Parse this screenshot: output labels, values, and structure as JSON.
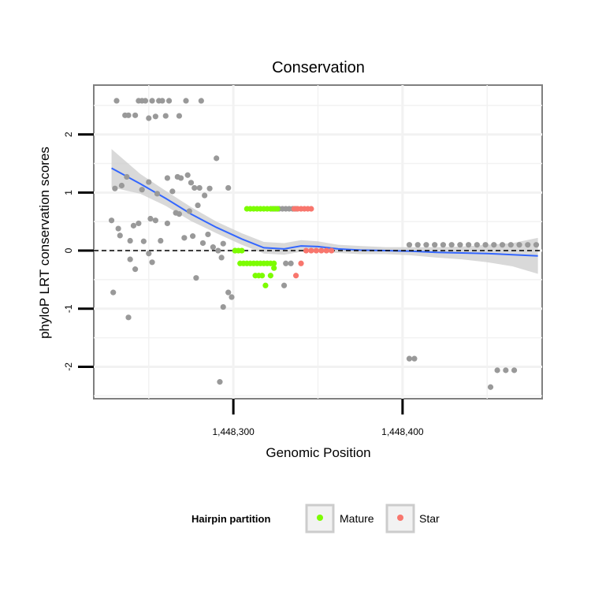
{
  "chart_data": {
    "type": "scatter",
    "title": "Conservation",
    "xlabel": "Genomic Position",
    "ylabel": "phyloP LRT conservation scores",
    "xlim": [
      1448217.5,
      1448482.5
    ],
    "ylim": [
      -2.55,
      2.85
    ],
    "x_ticks": [
      1448300,
      1448400
    ],
    "x_tick_labels": [
      "1,448,300",
      "1,448,400"
    ],
    "y_ticks": [
      -2,
      -1,
      0,
      1,
      2
    ],
    "y_tick_labels": [
      "-2",
      "-1",
      "0",
      "1",
      "2"
    ],
    "reference_line": {
      "y": 0,
      "style": "dashed",
      "color": "#000000"
    },
    "legend": {
      "title": "Hairpin partition",
      "position": "bottom",
      "entries": [
        {
          "label": "Mature",
          "color": "#7CFC00"
        },
        {
          "label": "Star",
          "color": "#F8766D"
        }
      ]
    },
    "colors": {
      "other": "#999999",
      "mature": "#7CFC00",
      "star": "#F8766D",
      "smooth": "#3366FF",
      "band": "#cccccc"
    },
    "series": [
      {
        "name": "other",
        "points": [
          [
            1448231,
            2.58
          ],
          [
            1448236,
            2.33
          ],
          [
            1448238,
            2.33
          ],
          [
            1448242,
            2.33
          ],
          [
            1448244,
            2.58
          ],
          [
            1448246,
            2.58
          ],
          [
            1448248,
            2.58
          ],
          [
            1448250,
            2.28
          ],
          [
            1448252,
            2.58
          ],
          [
            1448254,
            2.31
          ],
          [
            1448256,
            2.58
          ],
          [
            1448258,
            2.58
          ],
          [
            1448260,
            2.32
          ],
          [
            1448262,
            2.58
          ],
          [
            1448268,
            2.32
          ],
          [
            1448272,
            2.58
          ],
          [
            1448281,
            2.58
          ],
          [
            1448230,
            1.07
          ],
          [
            1448234,
            1.12
          ],
          [
            1448237,
            1.27
          ],
          [
            1448246,
            1.05
          ],
          [
            1448250,
            1.18
          ],
          [
            1448255,
            0.98
          ],
          [
            1448261,
            1.25
          ],
          [
            1448264,
            1.02
          ],
          [
            1448267,
            1.27
          ],
          [
            1448269,
            1.25
          ],
          [
            1448273,
            1.3
          ],
          [
            1448275,
            1.17
          ],
          [
            1448277,
            1.08
          ],
          [
            1448280,
            1.08
          ],
          [
            1448283,
            0.95
          ],
          [
            1448286,
            1.07
          ],
          [
            1448290,
            1.59
          ],
          [
            1448297,
            1.08
          ],
          [
            1448228,
            0.52
          ],
          [
            1448232,
            0.38
          ],
          [
            1448233,
            0.26
          ],
          [
            1448239,
            0.17
          ],
          [
            1448241,
            0.43
          ],
          [
            1448244,
            0.47
          ],
          [
            1448247,
            0.16
          ],
          [
            1448251,
            0.55
          ],
          [
            1448254,
            0.52
          ],
          [
            1448257,
            0.17
          ],
          [
            1448261,
            0.47
          ],
          [
            1448266,
            0.65
          ],
          [
            1448268,
            0.63
          ],
          [
            1448271,
            0.22
          ],
          [
            1448274,
            0.68
          ],
          [
            1448276,
            0.25
          ],
          [
            1448279,
            0.78
          ],
          [
            1448282,
            0.13
          ],
          [
            1448285,
            0.28
          ],
          [
            1448288,
            0.06
          ],
          [
            1448291,
            0.0
          ],
          [
            1448293,
            -0.12
          ],
          [
            1448239,
            -0.15
          ],
          [
            1448242,
            -0.32
          ],
          [
            1448250,
            -0.05
          ],
          [
            1448252,
            -0.2
          ],
          [
            1448278,
            -0.47
          ],
          [
            1448294,
            0.12
          ],
          [
            1448229,
            -0.72
          ],
          [
            1448238,
            -1.15
          ],
          [
            1448294,
            -0.97
          ],
          [
            1448297,
            -0.72
          ],
          [
            1448299,
            -0.8
          ],
          [
            1448292,
            -2.26
          ],
          [
            1448323,
            0.72
          ],
          [
            1448325,
            0.72
          ],
          [
            1448327,
            0.72
          ],
          [
            1448329,
            0.72
          ],
          [
            1448331,
            0.72
          ],
          [
            1448333,
            0.72
          ],
          [
            1448335,
            0.72
          ],
          [
            1448337,
            0.72
          ],
          [
            1448330,
            -0.6
          ],
          [
            1448331,
            -0.22
          ],
          [
            1448334,
            -0.22
          ],
          [
            1448301,
            0.0
          ],
          [
            1448404,
            -1.86
          ],
          [
            1448407,
            -1.86
          ],
          [
            1448452,
            -2.35
          ],
          [
            1448456,
            -2.06
          ],
          [
            1448461,
            -2.06
          ],
          [
            1448466,
            -2.06
          ],
          [
            1448404,
            0.1
          ],
          [
            1448409,
            0.1
          ],
          [
            1448414,
            0.1
          ],
          [
            1448419,
            0.1
          ],
          [
            1448424,
            0.1
          ],
          [
            1448429,
            0.1
          ],
          [
            1448434,
            0.1
          ],
          [
            1448439,
            0.1
          ],
          [
            1448444,
            0.1
          ],
          [
            1448449,
            0.1
          ],
          [
            1448454,
            0.1
          ],
          [
            1448459,
            0.1
          ],
          [
            1448464,
            0.1
          ],
          [
            1448469,
            0.1
          ],
          [
            1448474,
            0.1
          ],
          [
            1448479,
            0.1
          ]
        ]
      },
      {
        "name": "Mature",
        "points": [
          [
            1448301,
            0.0
          ],
          [
            1448303,
            0.0
          ],
          [
            1448305,
            0.0
          ],
          [
            1448304,
            -0.22
          ],
          [
            1448306,
            -0.22
          ],
          [
            1448308,
            -0.22
          ],
          [
            1448310,
            -0.22
          ],
          [
            1448312,
            -0.22
          ],
          [
            1448314,
            -0.22
          ],
          [
            1448316,
            -0.22
          ],
          [
            1448318,
            -0.22
          ],
          [
            1448320,
            -0.22
          ],
          [
            1448322,
            -0.22
          ],
          [
            1448324,
            -0.22
          ],
          [
            1448308,
            0.72
          ],
          [
            1448310,
            0.72
          ],
          [
            1448312,
            0.72
          ],
          [
            1448314,
            0.72
          ],
          [
            1448316,
            0.72
          ],
          [
            1448318,
            0.72
          ],
          [
            1448320,
            0.72
          ],
          [
            1448322,
            0.72
          ],
          [
            1448324,
            0.72
          ],
          [
            1448326,
            0.72
          ],
          [
            1448313,
            -0.43
          ],
          [
            1448315,
            -0.43
          ],
          [
            1448317,
            -0.43
          ],
          [
            1448322,
            -0.43
          ],
          [
            1448324,
            -0.3
          ],
          [
            1448319,
            -0.6
          ]
        ]
      },
      {
        "name": "Star",
        "points": [
          [
            1448336,
            0.72
          ],
          [
            1448338,
            0.72
          ],
          [
            1448340,
            0.72
          ],
          [
            1448342,
            0.72
          ],
          [
            1448344,
            0.72
          ],
          [
            1448346,
            0.72
          ],
          [
            1448337,
            -0.43
          ],
          [
            1448340,
            -0.22
          ],
          [
            1448343,
            0.0
          ],
          [
            1448346,
            0.0
          ],
          [
            1448349,
            0.0
          ],
          [
            1448352,
            0.0
          ],
          [
            1448355,
            0.0
          ],
          [
            1448358,
            0.0
          ]
        ]
      }
    ],
    "smooth_line": {
      "x": [
        1448228,
        1448245,
        1448260,
        1448275,
        1448290,
        1448305,
        1448318,
        1448330,
        1448340,
        1448350,
        1448362,
        1448375,
        1448390,
        1448405,
        1448420,
        1448435,
        1448450,
        1448465,
        1448480
      ],
      "y": [
        1.42,
        1.15,
        0.9,
        0.63,
        0.4,
        0.2,
        0.05,
        0.03,
        0.08,
        0.07,
        0.03,
        0.01,
        0.0,
        -0.01,
        -0.03,
        -0.04,
        -0.05,
        -0.07,
        -0.09
      ]
    },
    "confidence_band": {
      "x": [
        1448228,
        1448245,
        1448260,
        1448275,
        1448290,
        1448305,
        1448318,
        1448330,
        1448340,
        1448350,
        1448362,
        1448375,
        1448390,
        1448405,
        1448420,
        1448435,
        1448450,
        1448465,
        1448480
      ],
      "upper": [
        1.75,
        1.32,
        1.03,
        0.75,
        0.5,
        0.3,
        0.15,
        0.13,
        0.18,
        0.16,
        0.1,
        0.08,
        0.06,
        0.06,
        0.06,
        0.07,
        0.1,
        0.13,
        0.22
      ],
      "lower": [
        1.09,
        0.98,
        0.77,
        0.51,
        0.3,
        0.1,
        -0.05,
        -0.07,
        -0.02,
        -0.02,
        -0.04,
        -0.06,
        -0.06,
        -0.08,
        -0.12,
        -0.15,
        -0.2,
        -0.27,
        -0.4
      ]
    }
  }
}
